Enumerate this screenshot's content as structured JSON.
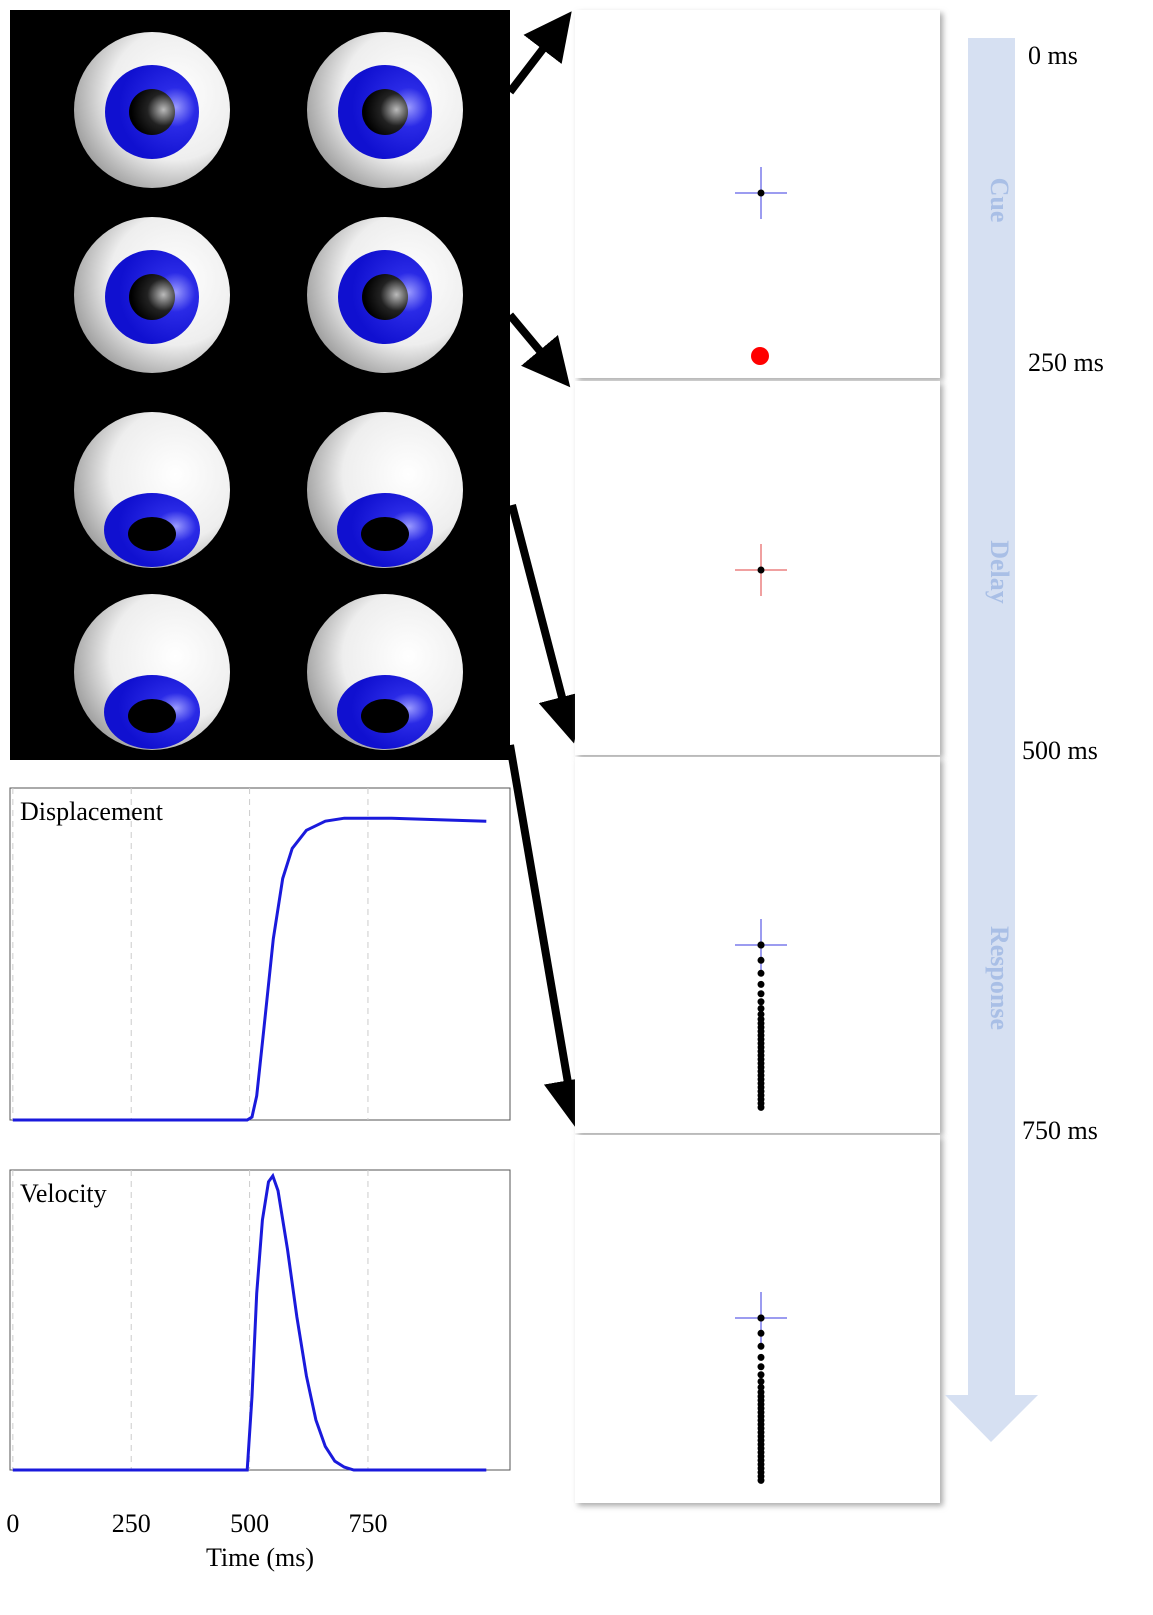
{
  "chart_data": [
    {
      "type": "line",
      "title": "Displacement",
      "color": "#1a1adc",
      "x": [
        0,
        495,
        505,
        515,
        530,
        550,
        570,
        590,
        620,
        660,
        700,
        800,
        1000
      ],
      "values": [
        0,
        0,
        0.01,
        0.08,
        0.3,
        0.6,
        0.8,
        0.9,
        0.96,
        0.99,
        1,
        1,
        0.99
      ],
      "xlim": [
        -6,
        1050
      ],
      "ylim": [
        0,
        1.1
      ],
      "grid": true
    },
    {
      "type": "line",
      "title": "Velocity",
      "color": "#1a1adc",
      "xlabel": "Time (ms)",
      "x": [
        0,
        495,
        505,
        515,
        527,
        540,
        549,
        560,
        580,
        600,
        620,
        640,
        660,
        680,
        700,
        720,
        1000
      ],
      "values": [
        0,
        0,
        0.25,
        0.6,
        0.85,
        0.98,
        1,
        0.95,
        0.75,
        0.52,
        0.32,
        0.17,
        0.08,
        0.03,
        0.01,
        0,
        0
      ],
      "xlim": [
        -6,
        1050
      ],
      "ylim": [
        0,
        1.02
      ],
      "xticks": [
        0,
        250,
        500,
        750
      ],
      "grid": true
    }
  ],
  "timeline": {
    "phases": [
      "Cue",
      "Delay",
      "Response"
    ],
    "times": [
      "0 ms",
      "250 ms",
      "500 ms",
      "750 ms"
    ]
  }
}
